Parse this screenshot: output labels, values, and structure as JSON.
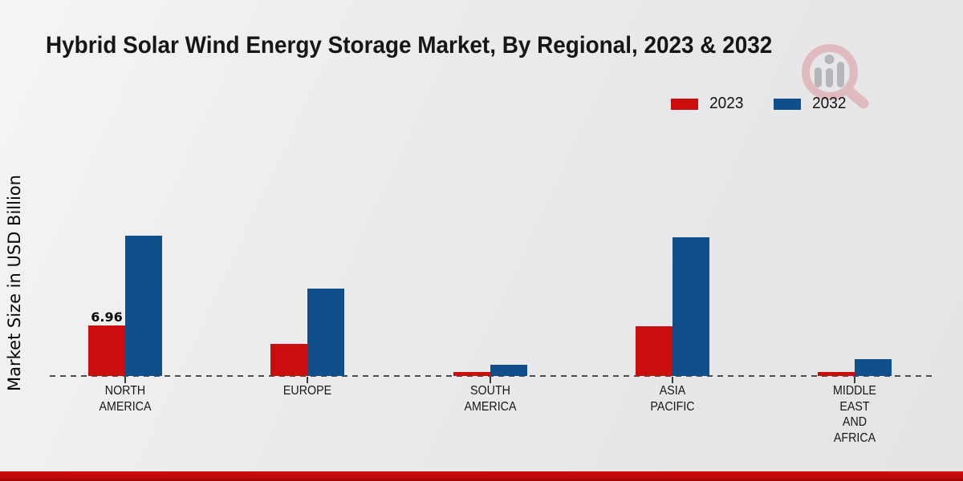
{
  "title": "Hybrid Solar Wind Energy Storage Market, By Regional, 2023 & 2032",
  "legend": [
    {
      "label": "2023",
      "color": "#cc0d0d"
    },
    {
      "label": "2032",
      "color": "#0e4f8c"
    }
  ],
  "ylabel": "Market Size in USD Billion",
  "watermark_icon": "market-research-magnifier-logo",
  "footer_color": "#bb0909",
  "chart_data": {
    "type": "bar",
    "title": "Hybrid Solar Wind Energy Storage Market, By Regional, 2023 & 2032",
    "xlabel": "",
    "ylabel": "Market Size in USD Billion",
    "categories": [
      "NORTH AMERICA",
      "EUROPE",
      "SOUTH AMERICA",
      "ASIA PACIFIC",
      "MIDDLE EAST AND AFRICA"
    ],
    "category_lines": [
      [
        "NORTH",
        "AMERICA"
      ],
      [
        "EUROPE"
      ],
      [
        "SOUTH",
        "AMERICA"
      ],
      [
        "ASIA",
        "PACIFIC"
      ],
      [
        "MIDDLE",
        "EAST",
        "AND",
        "AFRICA"
      ]
    ],
    "series": [
      {
        "name": "2023",
        "color": "#cc0d0d",
        "values": [
          6.96,
          4.4,
          0.6,
          6.85,
          0.6
        ]
      },
      {
        "name": "2032",
        "color": "#0e4f8c",
        "values": [
          19.3,
          12.0,
          1.5,
          19.1,
          2.3
        ]
      }
    ],
    "value_labels": [
      {
        "series_index": 0,
        "category_index": 0,
        "text": "6.96"
      }
    ],
    "ylim": [
      0,
      22
    ],
    "grid": false,
    "baseline_style": "dashed",
    "legend_position": "top-right"
  }
}
